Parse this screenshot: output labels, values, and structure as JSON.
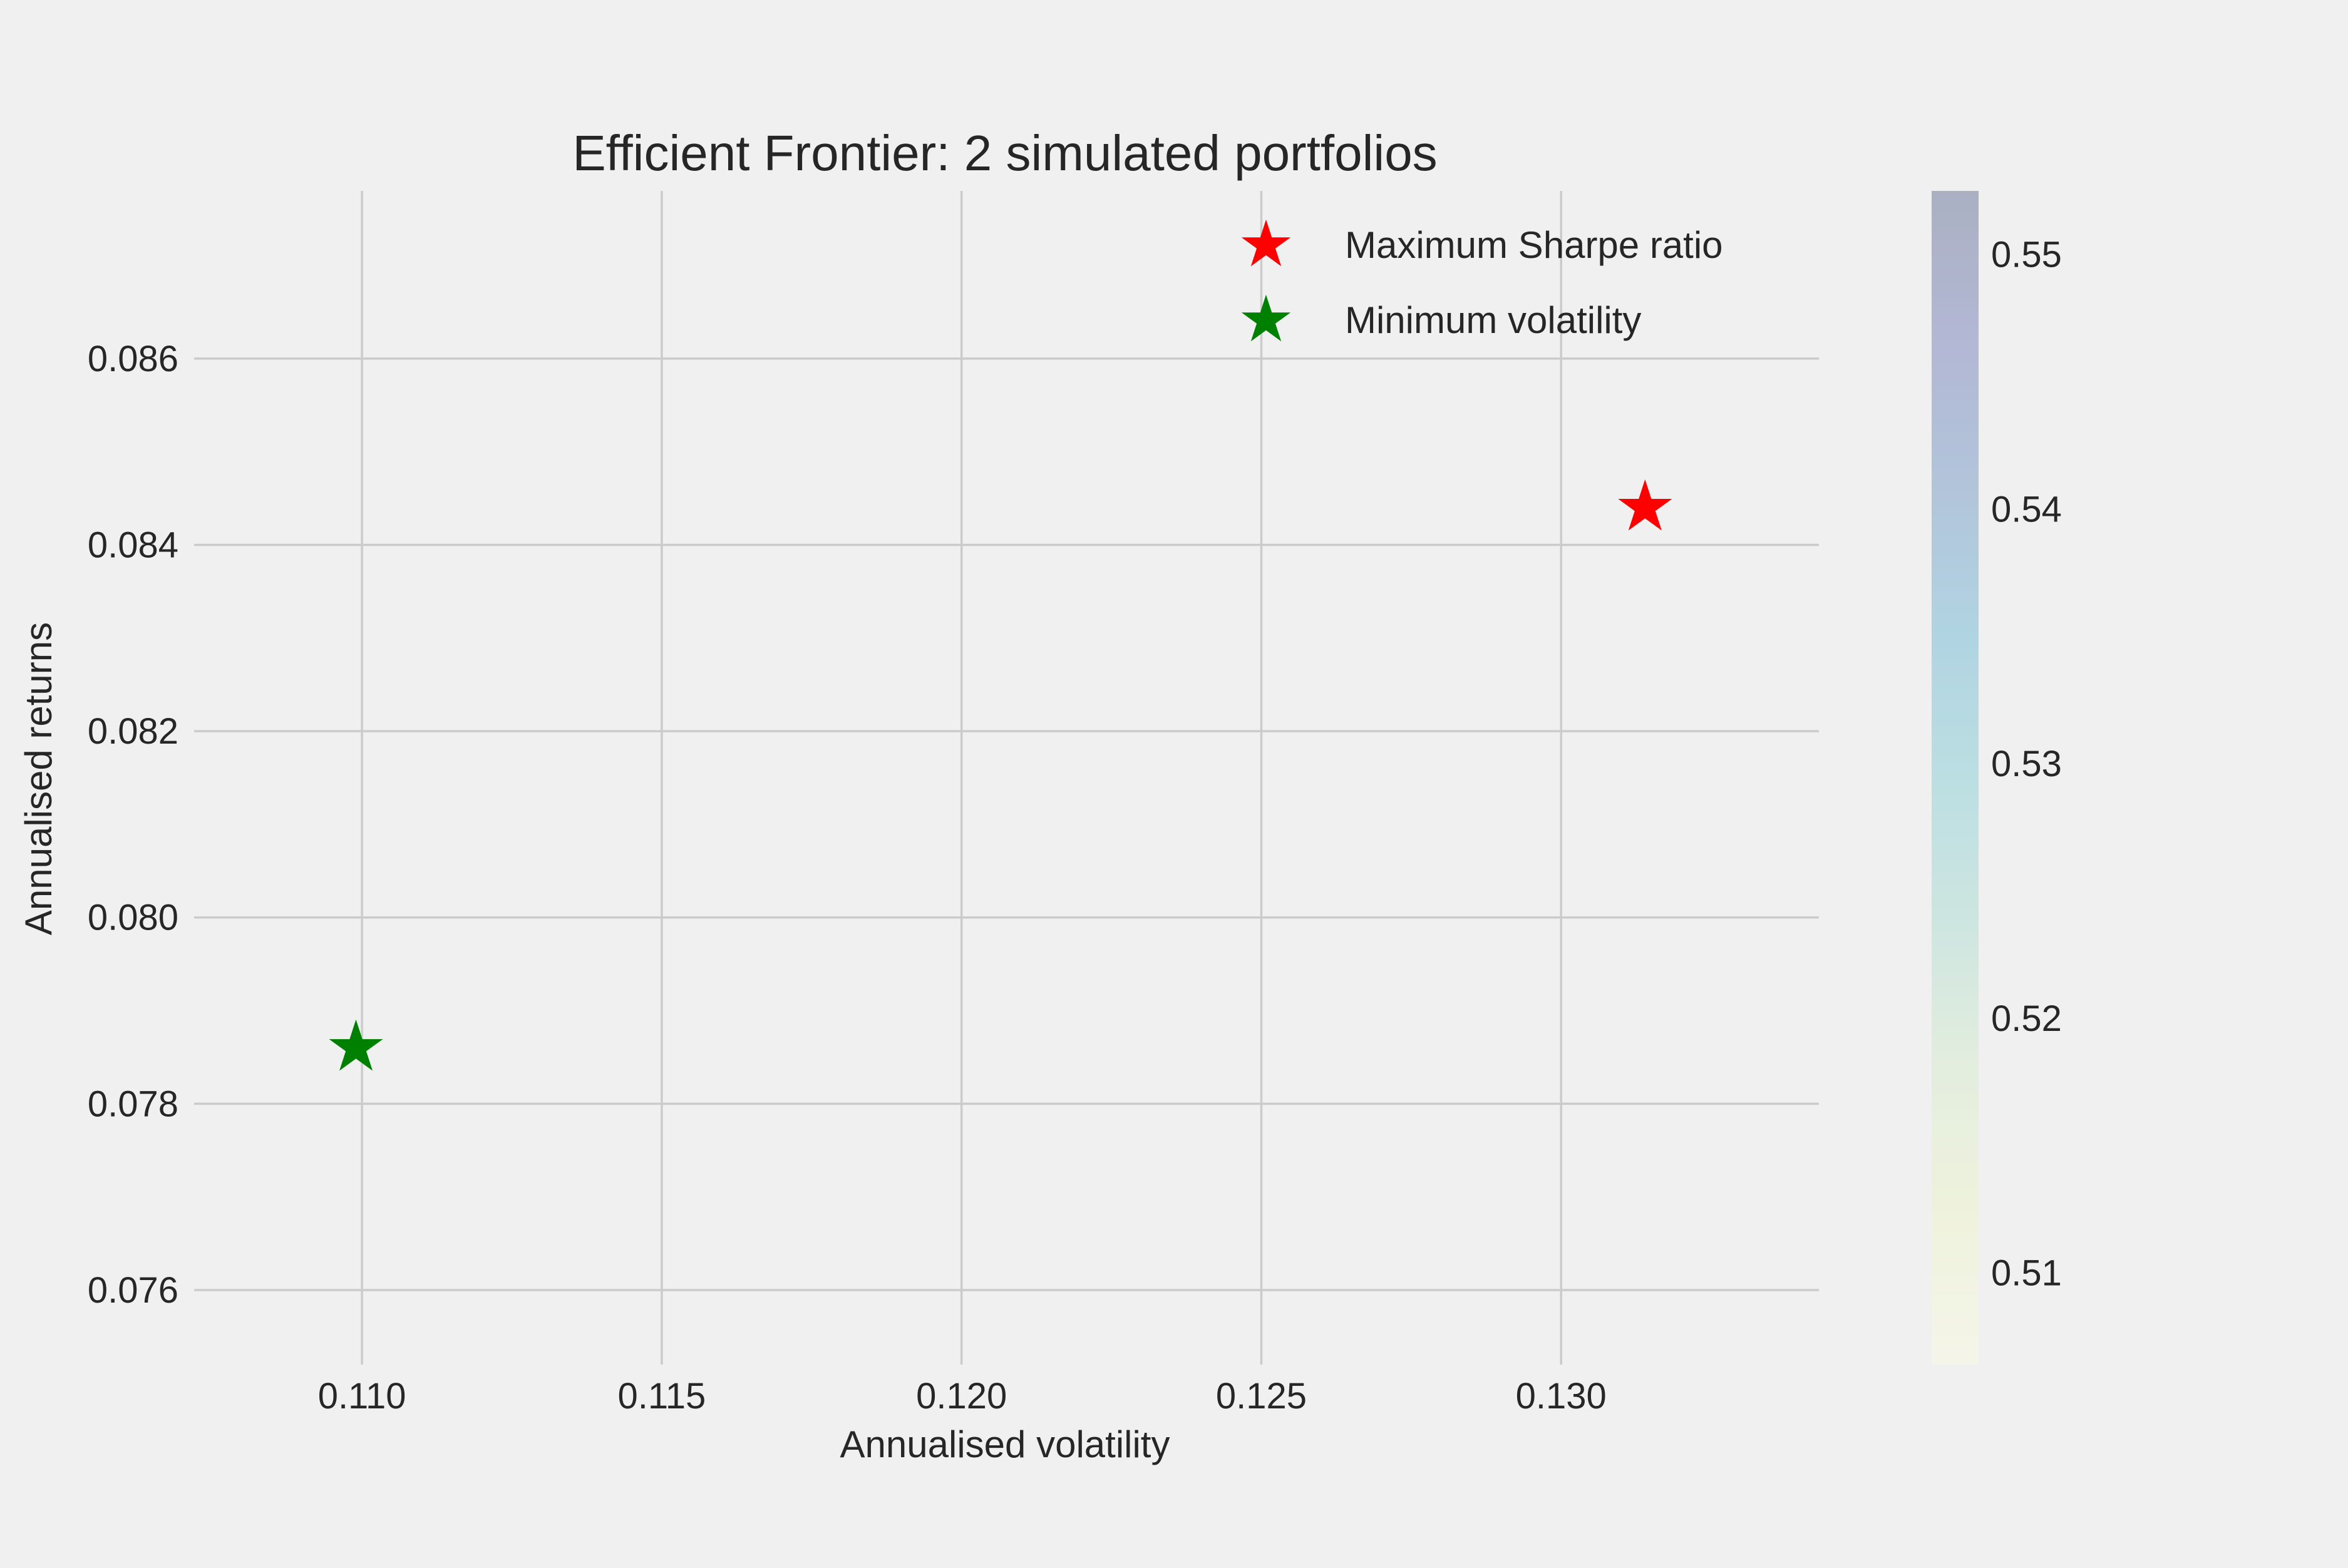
{
  "chart_data": {
    "type": "scatter",
    "title": "Efficient Frontier: 2 simulated portfolios",
    "xlabel": "Annualised volatility",
    "ylabel": "Annualised returns",
    "xlim": [
      0.1072,
      0.1343
    ],
    "ylim": [
      0.0752,
      0.0878
    ],
    "xticks": [
      "0.110",
      "0.115",
      "0.120",
      "0.125",
      "0.130"
    ],
    "yticks": [
      "0.076",
      "0.078",
      "0.080",
      "0.082",
      "0.084",
      "0.086"
    ],
    "grid": true,
    "legend_position": "top-right",
    "points": [
      {
        "x": 0.1314,
        "y": 0.0844,
        "color_value": 0.508
      },
      {
        "x": 0.1099,
        "y": 0.0786,
        "color_value": 0.552
      }
    ],
    "highlights": [
      {
        "label": "Maximum Sharpe ratio",
        "marker": "star",
        "color": "#ff0000",
        "x": 0.1314,
        "y": 0.0844
      },
      {
        "label": "Minimum volatility",
        "marker": "star",
        "color": "#008000",
        "x": 0.1099,
        "y": 0.0786
      }
    ],
    "colorbar": {
      "range": [
        0.5064,
        0.5525
      ],
      "ticks": [
        "0.51",
        "0.52",
        "0.53",
        "0.54",
        "0.55"
      ],
      "colormap": "YlGnBu",
      "alpha": 0.3
    }
  }
}
